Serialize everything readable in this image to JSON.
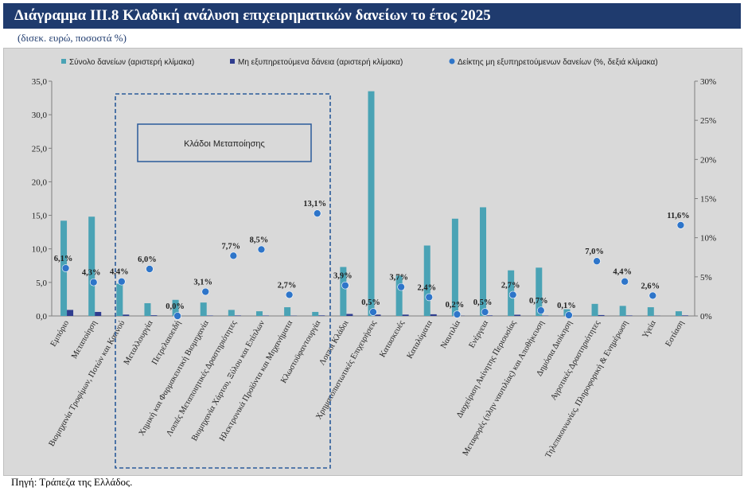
{
  "title": "Διάγραμμα ΙΙΙ.8 Κλαδική ανάλυση επιχειρηματικών δανείων το έτος 2025",
  "subtitle": "(δισεκ. ευρώ, ποσοστά %)",
  "source": "Πηγή: Τράπεζα της Ελλάδος.",
  "colors": {
    "title_bg": "#1f3b6e",
    "plot_bg": "#d9d9d9",
    "total_bar": "#4aa3b5",
    "npl_bar": "#2f3d8f",
    "ratio_dot": "#2e75c9",
    "box": "#2a5a9a"
  },
  "chart_data": {
    "type": "bar",
    "categories": [
      "Εμπόριο",
      "Μεταποίηση",
      "Βιομηχανία Τροφίμων, Ποτών και Καπνού",
      "Μεταλλουργία",
      "Πετρελαιοειδή",
      "Χημική και Φαρμακευτική Βιομηχανία",
      "Λοιπές Μεταποιητικές Δραστηριότητες",
      "Βιομηχανία Χάρτου, Ξύλου και Επίπλων",
      "Ηλεκτρονικά Προϊόντα και Μηχανήματα",
      "Κλωστοϋφαντουργία",
      "Λοιποί Κλάδοι",
      "Χρηματοπιστωτικές Επιχειρήσεις",
      "Κατασκευές",
      "Καταλύματα",
      "Ναυτιλία",
      "Ενέργεια",
      "Διαχείριση Ακίνητης Περιουσίας",
      "Μεταφορές (πλην ναυτιλίας) και Αποθήκευση",
      "Δημόσια Διοίκηση",
      "Αγροτικές Δραστηριότητες",
      "Τηλεπικοινωνίες, Πληροφορική & Ενημέρωση",
      "Υγεία",
      "Εστίαση"
    ],
    "series": [
      {
        "name": "Σύνολο δανείων (αριστερή κλίμακα)",
        "axis": "left",
        "values": [
          14.2,
          14.8,
          4.8,
          1.9,
          2.4,
          2.0,
          0.9,
          0.7,
          1.3,
          0.6,
          7.3,
          33.5,
          6.0,
          10.5,
          14.5,
          16.2,
          6.8,
          7.2,
          1.0,
          1.8,
          1.5,
          1.3,
          0.7
        ]
      },
      {
        "name": "Μη εξυπηρετούμενα δάνεια (αριστερή κλίμακα)",
        "axis": "left",
        "values": [
          0.9,
          0.6,
          0.2,
          0.1,
          0.0,
          0.06,
          0.07,
          0.06,
          0.04,
          0.08,
          0.3,
          0.2,
          0.2,
          0.25,
          0.03,
          0.08,
          0.18,
          0.05,
          0.0,
          0.13,
          0.07,
          0.03,
          0.08
        ]
      },
      {
        "name": "Δείκτης μη εξυπηρετούμενων δανείων (%, δεξιά κλίμακα)",
        "axis": "right",
        "values": [
          6.1,
          4.3,
          4.4,
          6.0,
          0.0,
          3.1,
          7.7,
          8.5,
          2.7,
          13.1,
          3.9,
          0.5,
          3.7,
          2.4,
          0.2,
          0.5,
          2.7,
          0.7,
          0.1,
          7.0,
          4.4,
          2.6,
          11.6
        ],
        "labels": [
          "6,1%",
          "4,3%",
          "4,4%",
          "6,0%",
          "0,0%",
          "3,1%",
          "7,7%",
          "8,5%",
          "2,7%",
          "13,1%",
          "3,9%",
          "0,5%",
          "3,7%",
          "2,4%",
          "0,2%",
          "0,5%",
          "2,7%",
          "0,7%",
          "0,1%",
          "7,0%",
          "4,4%",
          "2,6%",
          "11,6%"
        ]
      }
    ],
    "y_left": {
      "range": [
        0,
        35
      ],
      "ticks": [
        "0,0",
        "5,0",
        "10,0",
        "15,0",
        "20,0",
        "25,0",
        "30,0",
        "35,0"
      ]
    },
    "y_right": {
      "range": [
        0,
        30
      ],
      "ticks": [
        "0%",
        "5%",
        "10%",
        "15%",
        "20%",
        "25%",
        "30%"
      ]
    },
    "annotation": "Κλάδοι Μεταποίησης",
    "legend_position": "top"
  }
}
